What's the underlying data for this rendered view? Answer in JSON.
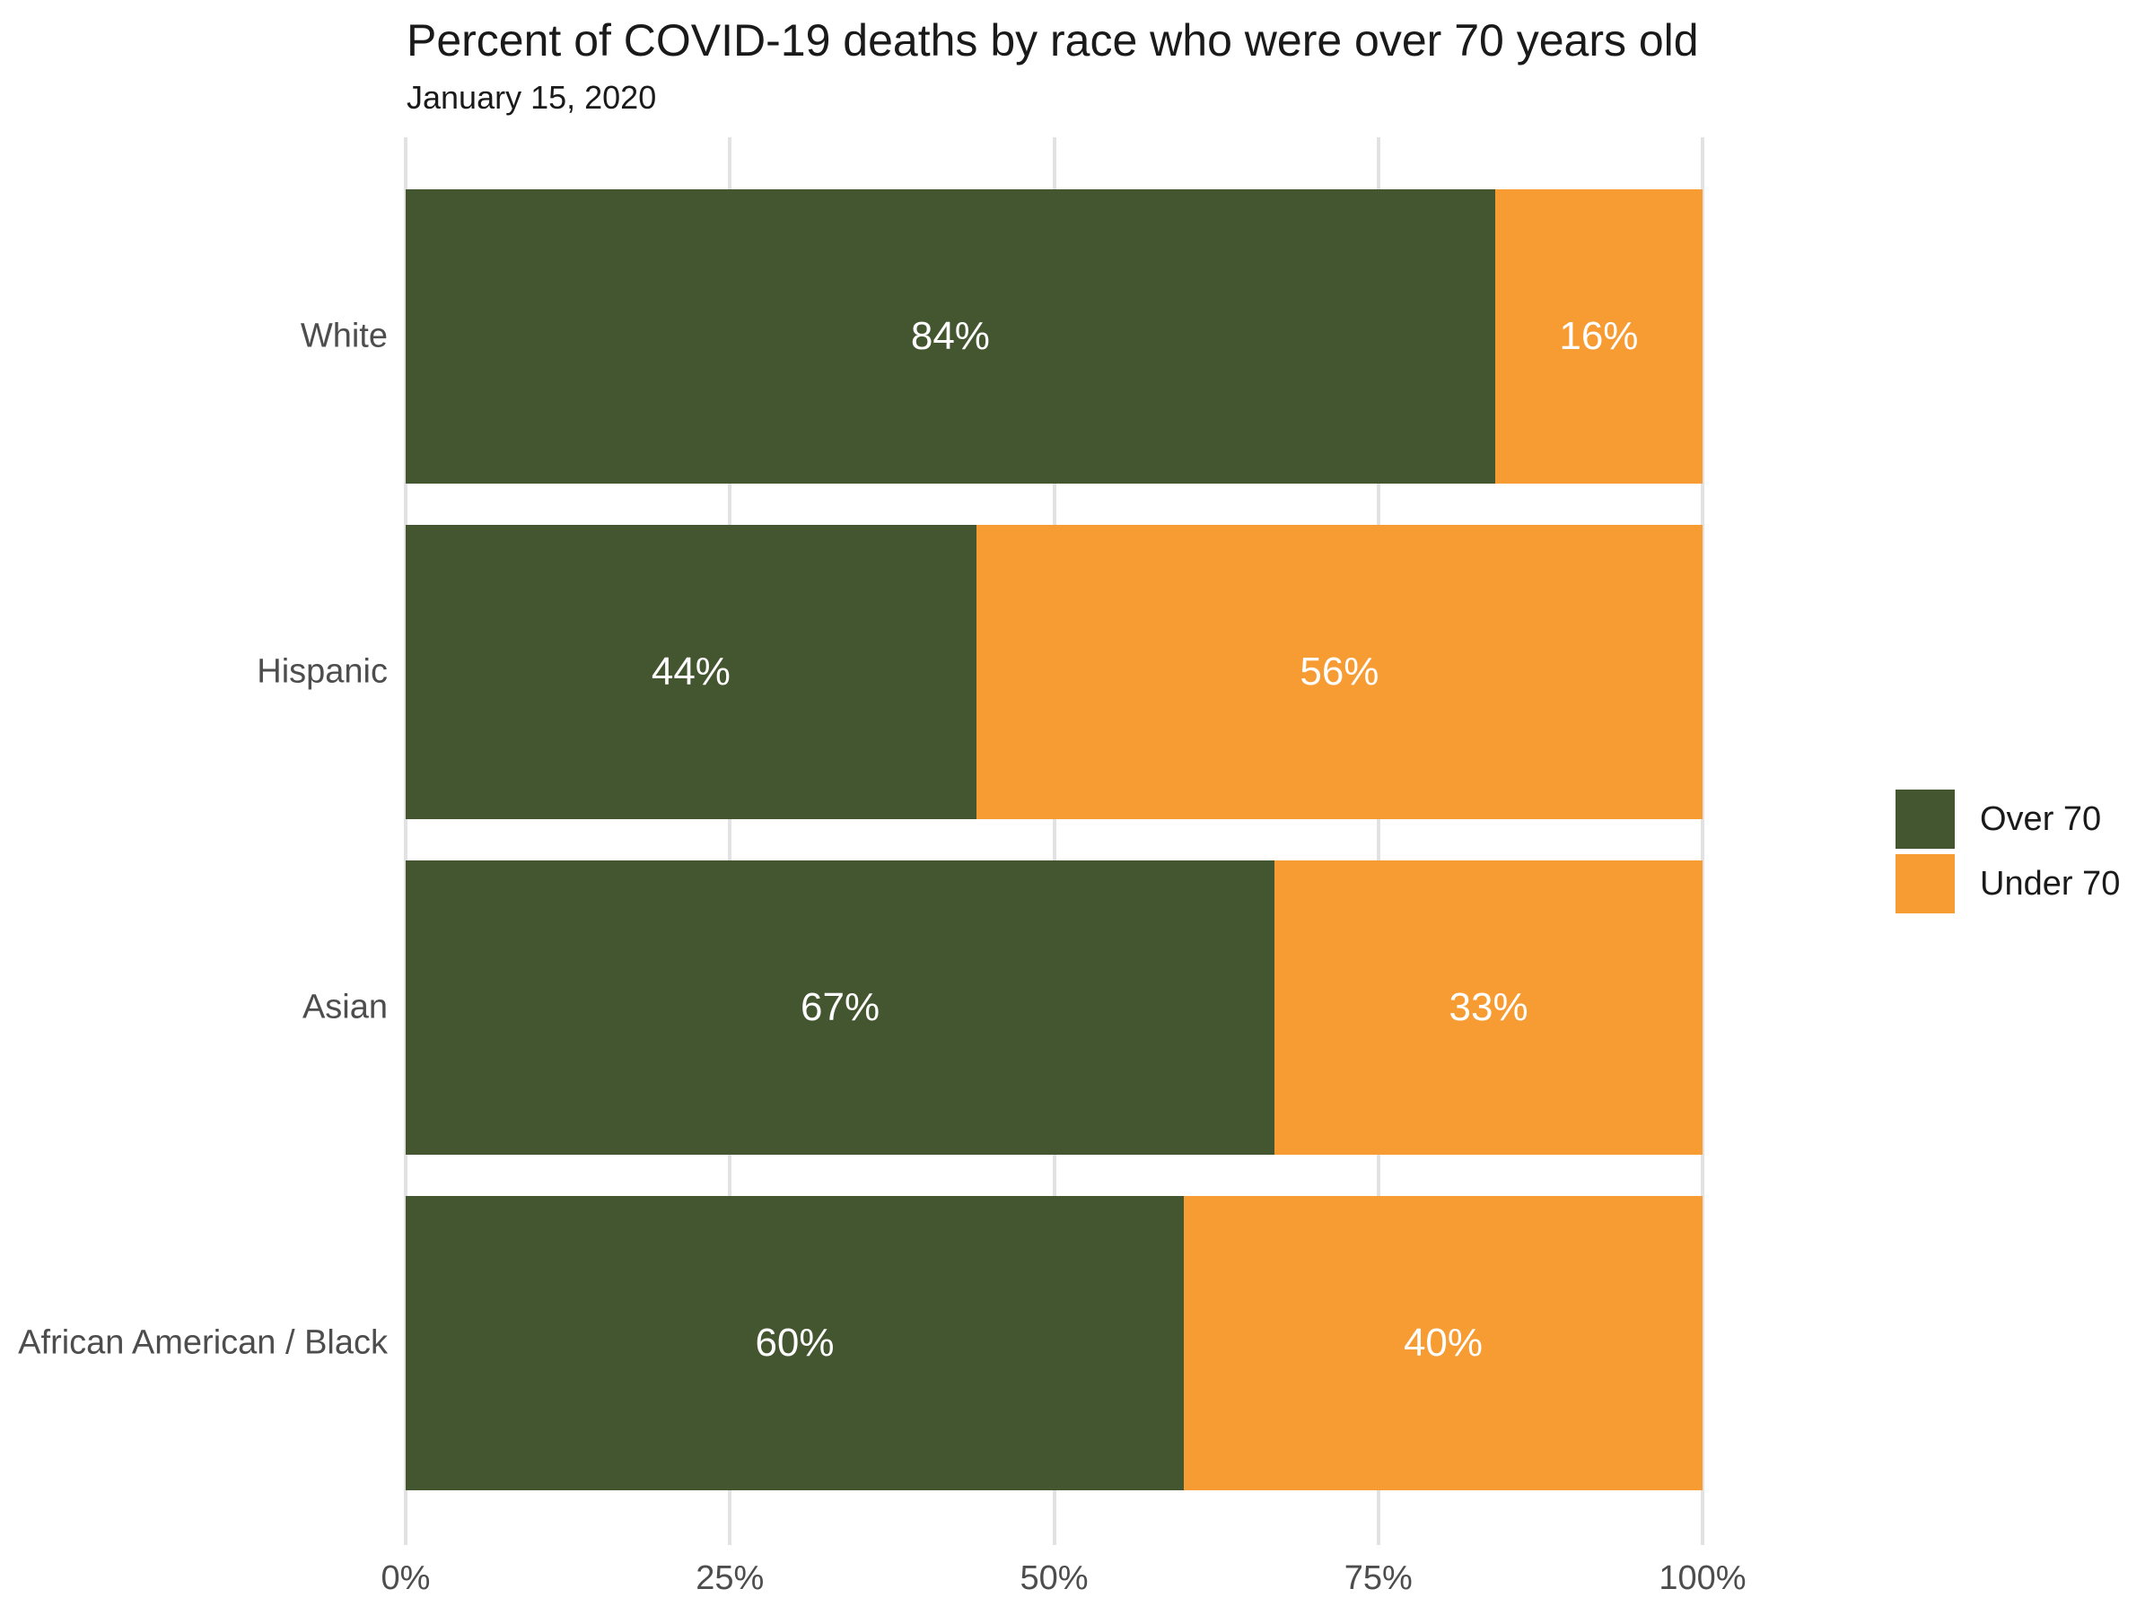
{
  "title": "Percent of COVID-19 deaths by race who were over 70 years old",
  "subtitle": "January 15, 2020",
  "colors": {
    "over70": "#44562F",
    "under70": "#F79B33",
    "gridline": "#E2E2E2",
    "axis_text": "#4d4d4d",
    "bar_label_text": "#ffffff"
  },
  "legend": {
    "position": "right",
    "items": [
      {
        "label": "Over 70",
        "color": "#44562F"
      },
      {
        "label": "Under 70",
        "color": "#F79B33"
      }
    ]
  },
  "x_axis": {
    "tick_labels": [
      "0%",
      "25%",
      "50%",
      "75%",
      "100%"
    ],
    "tick_values": [
      0,
      25,
      50,
      75,
      100
    ]
  },
  "chart_data": {
    "type": "bar",
    "orientation": "horizontal",
    "stacked": true,
    "title": "Percent of COVID-19 deaths by race who were over 70 years old",
    "subtitle": "January 15, 2020",
    "categories": [
      "White",
      "Hispanic",
      "Asian",
      "African American / Black"
    ],
    "series": [
      {
        "name": "Over 70",
        "color": "#44562F",
        "values": [
          84,
          44,
          67,
          60
        ]
      },
      {
        "name": "Under 70",
        "color": "#F79B33",
        "values": [
          16,
          56,
          33,
          40
        ]
      }
    ],
    "bar_labels": [
      [
        "84%",
        "16%"
      ],
      [
        "44%",
        "56%"
      ],
      [
        "67%",
        "33%"
      ],
      [
        "60%",
        "40%"
      ]
    ],
    "xlim": [
      0,
      100
    ],
    "xlabel": "",
    "ylabel": "",
    "grid": true,
    "legend_position": "right-middle"
  }
}
